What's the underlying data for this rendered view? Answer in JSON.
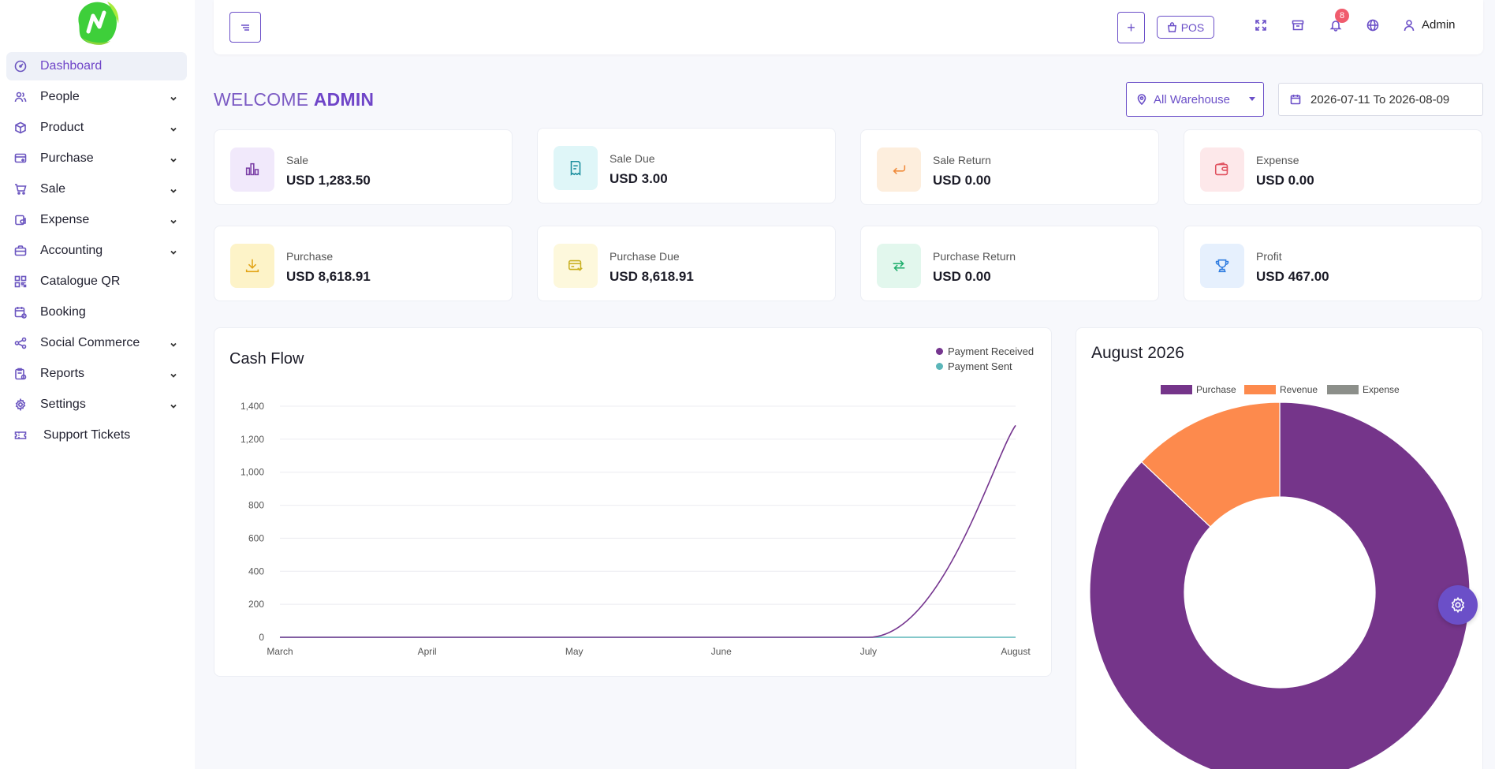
{
  "sidebar": {
    "items": [
      {
        "label": "Dashboard",
        "icon": "gauge-icon",
        "active": true,
        "has_children": false
      },
      {
        "label": "People",
        "icon": "users-icon",
        "has_children": true
      },
      {
        "label": "Product",
        "icon": "box-icon",
        "has_children": true
      },
      {
        "label": "Purchase",
        "icon": "cart-plus-icon",
        "has_children": true
      },
      {
        "label": "Sale",
        "icon": "shopping-cart-icon",
        "has_children": true
      },
      {
        "label": "Expense",
        "icon": "wallet-icon",
        "has_children": true
      },
      {
        "label": "Accounting",
        "icon": "briefcase-icon",
        "has_children": true
      },
      {
        "label": "Catalogue QR",
        "icon": "qrcode-icon",
        "has_children": false
      },
      {
        "label": "Booking",
        "icon": "calendar-icon",
        "has_children": false
      },
      {
        "label": "Social Commerce",
        "icon": "share-icon",
        "has_children": true
      },
      {
        "label": "Reports",
        "icon": "report-icon",
        "has_children": true
      },
      {
        "label": "Settings",
        "icon": "gear-icon",
        "has_children": true
      },
      {
        "label": "Support Tickets",
        "icon": "ticket-icon",
        "has_children": false
      }
    ]
  },
  "topbar": {
    "pos_label": "POS",
    "plus_label": "+",
    "notification_count": "8",
    "user_name": "Admin"
  },
  "header": {
    "welcome_prefix": "WELCOME",
    "welcome_name": "ADMIN",
    "warehouse_selected": "All Warehouse",
    "date_range": "2026-07-11 To 2026-08-09"
  },
  "cards": [
    {
      "label": "Sale",
      "value": "USD 1,283.50",
      "icon": "bar-chart-icon",
      "bg": "#f1e9fb",
      "color": "#7b3fa6"
    },
    {
      "label": "Sale Due",
      "value": "USD 3.00",
      "icon": "receipt-icon",
      "bg": "#dff6f8",
      "color": "#1a8e9e"
    },
    {
      "label": "Sale Return",
      "value": "USD 0.00",
      "icon": "return-icon",
      "bg": "#fdeedd",
      "color": "#f08a3a"
    },
    {
      "label": "Expense",
      "value": "USD 0.00",
      "icon": "wallet-icon",
      "bg": "#fde8ea",
      "color": "#e0505e"
    },
    {
      "label": "Purchase",
      "value": "USD 8,618.91",
      "icon": "download-icon",
      "bg": "#fdf3c8",
      "color": "#e2a417"
    },
    {
      "label": "Purchase Due",
      "value": "USD 8,618.91",
      "icon": "card-icon",
      "bg": "#fdf8dc",
      "color": "#c9b022"
    },
    {
      "label": "Purchase Return",
      "value": "USD 0.00",
      "icon": "exchange-icon",
      "bg": "#e2f7ed",
      "color": "#1fae6c"
    },
    {
      "label": "Profit",
      "value": "USD 467.00",
      "icon": "trophy-icon",
      "bg": "#e6f0fd",
      "color": "#2f7ce0"
    }
  ],
  "chart_data": [
    {
      "type": "line",
      "title": "Cash Flow",
      "x": [
        "March",
        "April",
        "May",
        "June",
        "July",
        "August"
      ],
      "series": [
        {
          "name": "Payment Received",
          "color": "#75358f",
          "values": [
            0,
            0,
            0,
            0,
            0,
            1283.5
          ]
        },
        {
          "name": "Payment Sent",
          "color": "#5bb6b9",
          "values": [
            0,
            0,
            0,
            0,
            0,
            0
          ]
        }
      ],
      "y_ticks": [
        "0",
        "200",
        "400",
        "600",
        "800",
        "1,000",
        "1,200",
        "1,400"
      ],
      "ylim": [
        0,
        1400
      ],
      "grid": true,
      "legend": "top-right"
    },
    {
      "type": "pie",
      "title": "August 2026",
      "labels": [
        "Purchase",
        "Revenue",
        "Expense"
      ],
      "values": [
        8618.91,
        1283.5,
        0
      ],
      "colors": [
        "#75358a",
        "#fd8a4d",
        "#8c8f8a"
      ],
      "legend": "top",
      "donut": true
    }
  ]
}
